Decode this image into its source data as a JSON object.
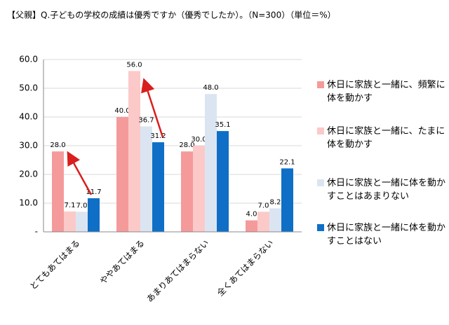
{
  "chart_data": {
    "type": "bar",
    "title": "【父親】Q.子どもの学校の成績は優秀ですか（優秀でしたか）。（N=300）（単位＝%）",
    "categories": [
      "とてもあてはまる",
      "ややあてはまる",
      "あまりあてはまらない",
      "全くあてはまらない"
    ],
    "series": [
      {
        "name": "休日に家族と一緒に、頻繁に体を動かす",
        "color": "#f59a9a",
        "values": [
          28.0,
          40.0,
          28.0,
          4.0
        ],
        "value_labels": [
          "28.0",
          "40.0",
          "28.0",
          "4.0"
        ]
      },
      {
        "name": "休日に家族と一緒に、たまに体を動かす",
        "color": "#fcc9c9",
        "values": [
          7.1,
          56.0,
          30.0,
          7.0
        ],
        "value_labels": [
          "7.1",
          "56.0",
          "30.0",
          "7.0"
        ]
      },
      {
        "name": "休日に家族と一緒に体を動かすことはあまりない",
        "color": "#dbe5f1",
        "values": [
          7.0,
          36.7,
          48.0,
          8.2
        ],
        "value_labels": [
          "7.0",
          "36.7",
          "48.0",
          "8.2"
        ]
      },
      {
        "name": "休日に家族と一緒に体を動かすことはない",
        "color": "#0f6fc6",
        "values": [
          11.7,
          31.2,
          35.1,
          22.1
        ],
        "value_labels": [
          "11.7",
          "31.2",
          "35.1",
          "22.1"
        ]
      }
    ],
    "ylim": [
      0,
      60
    ],
    "yticks": [
      {
        "value": 0,
        "label": "-"
      },
      {
        "value": 10,
        "label": "10.0"
      },
      {
        "value": 20,
        "label": "20.0"
      },
      {
        "value": 30,
        "label": "30.0"
      },
      {
        "value": 40,
        "label": "40.0"
      },
      {
        "value": 50,
        "label": "50.0"
      },
      {
        "value": 60,
        "label": "60.0"
      }
    ],
    "grid": true
  }
}
